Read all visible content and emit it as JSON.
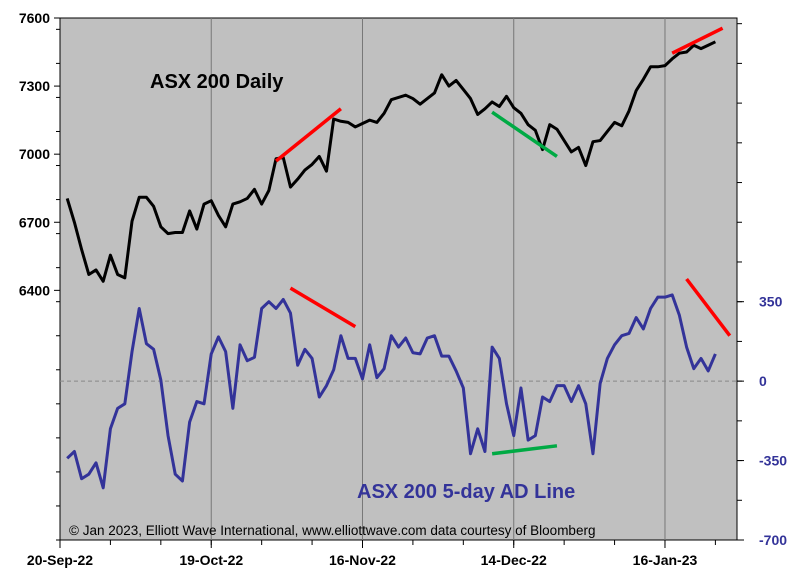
{
  "chart_data": [
    {
      "type": "line",
      "title": "ASX 200 Daily",
      "axis": "left",
      "ylim": [
        5300,
        7600
      ],
      "yticks": [
        6400,
        6700,
        7000,
        7300,
        7600
      ],
      "ytick_labels": [
        "6400",
        "6700",
        "7000",
        "7300",
        "7600"
      ],
      "x": [
        0,
        1,
        2,
        3,
        4,
        5,
        6,
        7,
        8,
        9,
        10,
        11,
        12,
        13,
        14,
        15,
        16,
        17,
        18,
        19,
        20,
        21,
        22,
        23,
        24,
        25,
        26,
        27,
        28,
        29,
        30,
        31,
        32,
        33,
        34,
        35,
        36,
        37,
        38,
        39,
        40,
        41,
        42,
        43,
        44,
        45,
        46,
        47,
        48,
        49,
        50,
        51,
        52,
        53,
        54,
        55,
        56,
        57,
        58,
        59,
        60,
        61,
        62,
        63,
        64,
        65,
        66,
        67,
        68,
        69,
        70,
        71,
        72,
        73,
        74,
        75,
        76,
        77,
        78,
        79,
        80,
        81,
        82,
        83,
        84,
        85,
        86,
        87,
        88,
        89,
        90
      ],
      "values": [
        6805,
        6700,
        6580,
        6470,
        6490,
        6440,
        6555,
        6470,
        6455,
        6705,
        6810,
        6810,
        6770,
        6680,
        6650,
        6655,
        6655,
        6750,
        6670,
        6780,
        6795,
        6730,
        6680,
        6780,
        6790,
        6805,
        6845,
        6780,
        6840,
        6980,
        6985,
        6855,
        6890,
        6930,
        6955,
        6990,
        6925,
        7155,
        7145,
        7140,
        7120,
        7135,
        7150,
        7140,
        7180,
        7240,
        7250,
        7260,
        7245,
        7220,
        7245,
        7270,
        7350,
        7300,
        7325,
        7285,
        7245,
        7175,
        7200,
        7230,
        7210,
        7255,
        7205,
        7180,
        7130,
        7105,
        7020,
        7130,
        7110,
        7060,
        7010,
        7030,
        6950,
        7055,
        7060,
        7100,
        7140,
        7125,
        7190,
        7280,
        7330,
        7385,
        7385,
        7390,
        7420,
        7445,
        7450,
        7480,
        7465,
        7480,
        7495
      ],
      "line_color": "#000000"
    },
    {
      "type": "line",
      "title": "ASX 200 5-day AD Line",
      "axis": "right",
      "ylim": [
        -700,
        1600
      ],
      "yticks": [
        -700,
        -350,
        0,
        350
      ],
      "ytick_labels": [
        "-700",
        "-350",
        "0",
        "350"
      ],
      "values": [
        -340,
        -310,
        -430,
        -410,
        -360,
        -470,
        -210,
        -120,
        -100,
        130,
        320,
        165,
        140,
        5,
        -240,
        -410,
        -440,
        -180,
        -90,
        -100,
        120,
        195,
        130,
        -120,
        160,
        90,
        105,
        320,
        350,
        320,
        360,
        300,
        70,
        140,
        100,
        -70,
        -20,
        50,
        200,
        100,
        100,
        10,
        160,
        15,
        55,
        200,
        150,
        190,
        125,
        120,
        190,
        200,
        110,
        110,
        45,
        -30,
        -320,
        -210,
        -310,
        150,
        100,
        -100,
        -240,
        -30,
        -260,
        -240,
        -70,
        -90,
        -20,
        -20,
        -90,
        -20,
        -100,
        -320,
        -10,
        100,
        160,
        200,
        210,
        280,
        230,
        320,
        370,
        370,
        380,
        290,
        150,
        55,
        100,
        45,
        120
      ],
      "line_color": "#333399"
    }
  ],
  "x_axis": {
    "tick_labels": [
      "20-Sep-22",
      "19-Oct-22",
      "16-Nov-22",
      "14-Dec-22",
      "16-Jan-23"
    ],
    "tick_index": [
      0,
      21,
      42,
      63,
      84
    ],
    "zero_line_value": 0
  },
  "trendlines": [
    {
      "name": "trendline-red",
      "color": "#ff0000",
      "axis": "left",
      "from": [
        30,
        6970
      ],
      "to": [
        39,
        7200
      ]
    },
    {
      "name": "trendline-green",
      "color": "#00aa44",
      "axis": "left",
      "from": [
        60,
        7185
      ],
      "to": [
        69,
        6990
      ]
    },
    {
      "name": "trendline-red",
      "color": "#ff0000",
      "axis": "left",
      "from": [
        85,
        7445
      ],
      "to": [
        92,
        7555
      ]
    },
    {
      "name": "trendline-red",
      "color": "#ff0000",
      "axis": "right",
      "from": [
        32,
        410
      ],
      "to": [
        41,
        240
      ]
    },
    {
      "name": "trendline-green",
      "color": "#00aa44",
      "axis": "right",
      "from": [
        60,
        -320
      ],
      "to": [
        69,
        -285
      ]
    },
    {
      "name": "trendline-red",
      "color": "#ff0000",
      "axis": "right",
      "from": [
        87,
        450
      ],
      "to": [
        93,
        200
      ]
    }
  ],
  "labels": {
    "asx_title": "ASX 200 Daily",
    "ad_title": "ASX 200 5-day AD Line",
    "copyright": "© Jan 2023, Elliott Wave International, www.elliottwave.com data courtesy of Bloomberg"
  },
  "colors": {
    "plot_bg": "#c0c0c0",
    "gridline": "#777777",
    "zero_line": "#888888",
    "asx_line": "#000000",
    "ad_line": "#333399",
    "right_axis_text": "#333399"
  }
}
